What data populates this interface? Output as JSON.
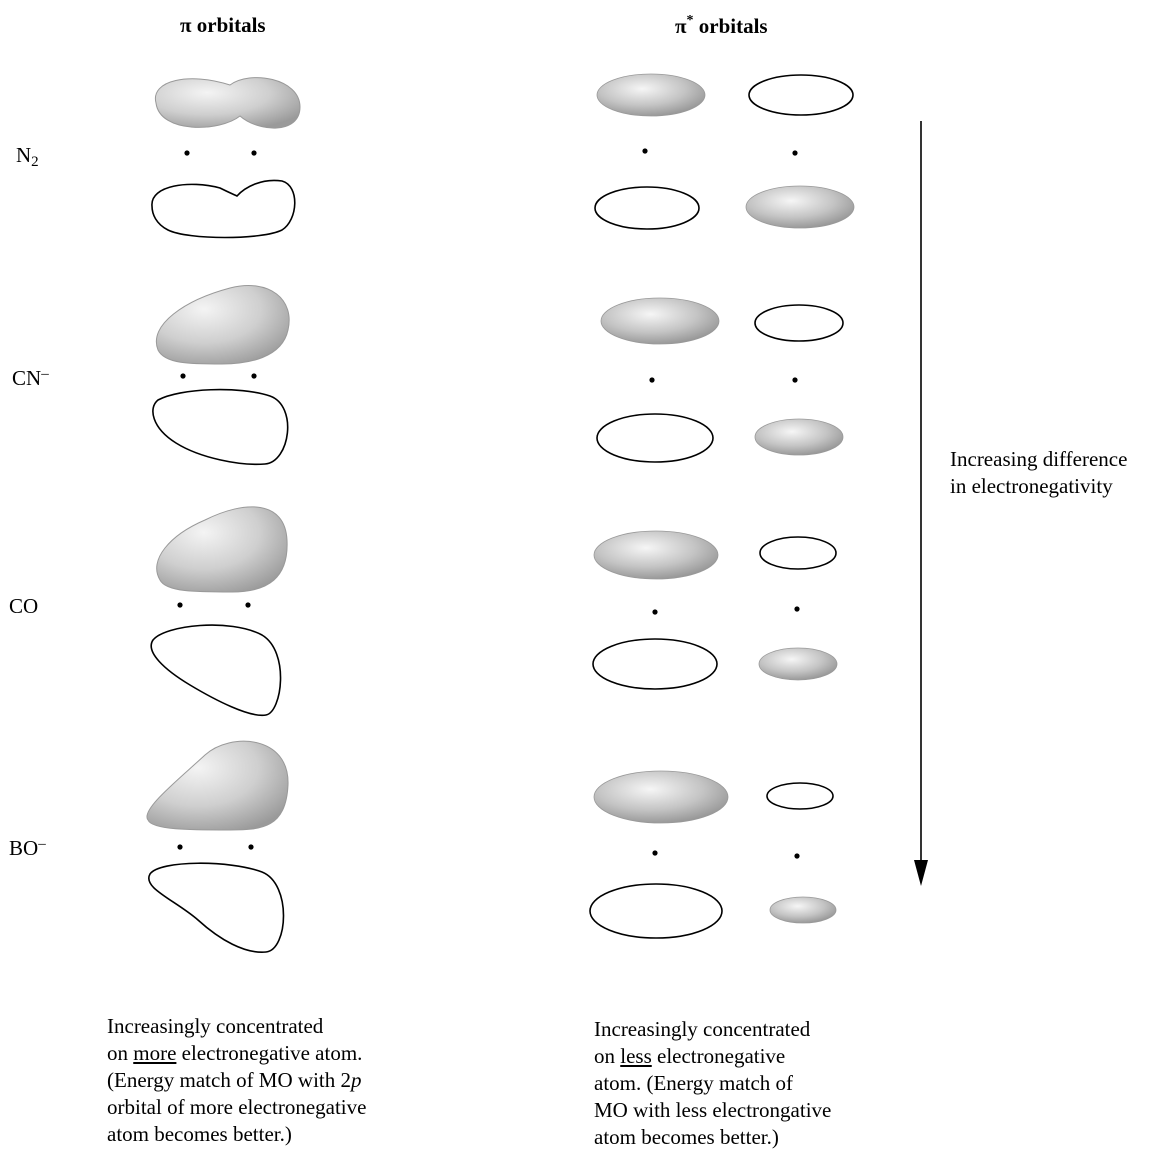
{
  "headings": {
    "pi_symbol": "π",
    "pi_label": "orbitals",
    "pistar_symbol": "π",
    "pistar_sup": "*",
    "pistar_label": "orbitals"
  },
  "molecules": [
    {
      "id": "n2",
      "base": "N",
      "sub": "2",
      "sup": ""
    },
    {
      "id": "cn",
      "base": "CN",
      "sub": "",
      "sup": "–"
    },
    {
      "id": "co",
      "base": "CO",
      "sub": "",
      "sup": ""
    },
    {
      "id": "bo",
      "base": "BO",
      "sub": "",
      "sup": "–"
    }
  ],
  "arrow_label": {
    "line1": "Increasing difference",
    "line2": "in electronegativity"
  },
  "notes": {
    "pi": {
      "l1": "Increasingly concentrated",
      "l2_pre": "on ",
      "l2_u": "more",
      "l2_post": " electronegative atom.",
      "l3_pre": "(Energy match of MO with 2",
      "l3_em": "p",
      "l4": "orbital of more electronegative",
      "l5": "atom becomes better.)"
    },
    "pistar": {
      "l1": "Increasingly concentrated",
      "l2_pre": "on ",
      "l2_u": "less",
      "l2_post": " electronegative",
      "l3": "atom. (Energy match of",
      "l4": "MO with less electrongative",
      "l5": "atom becomes better.)"
    }
  },
  "colors": {
    "ink": "#000000",
    "shade_light": "#f4f4f4",
    "shade_dark": "#9a9a9a"
  }
}
